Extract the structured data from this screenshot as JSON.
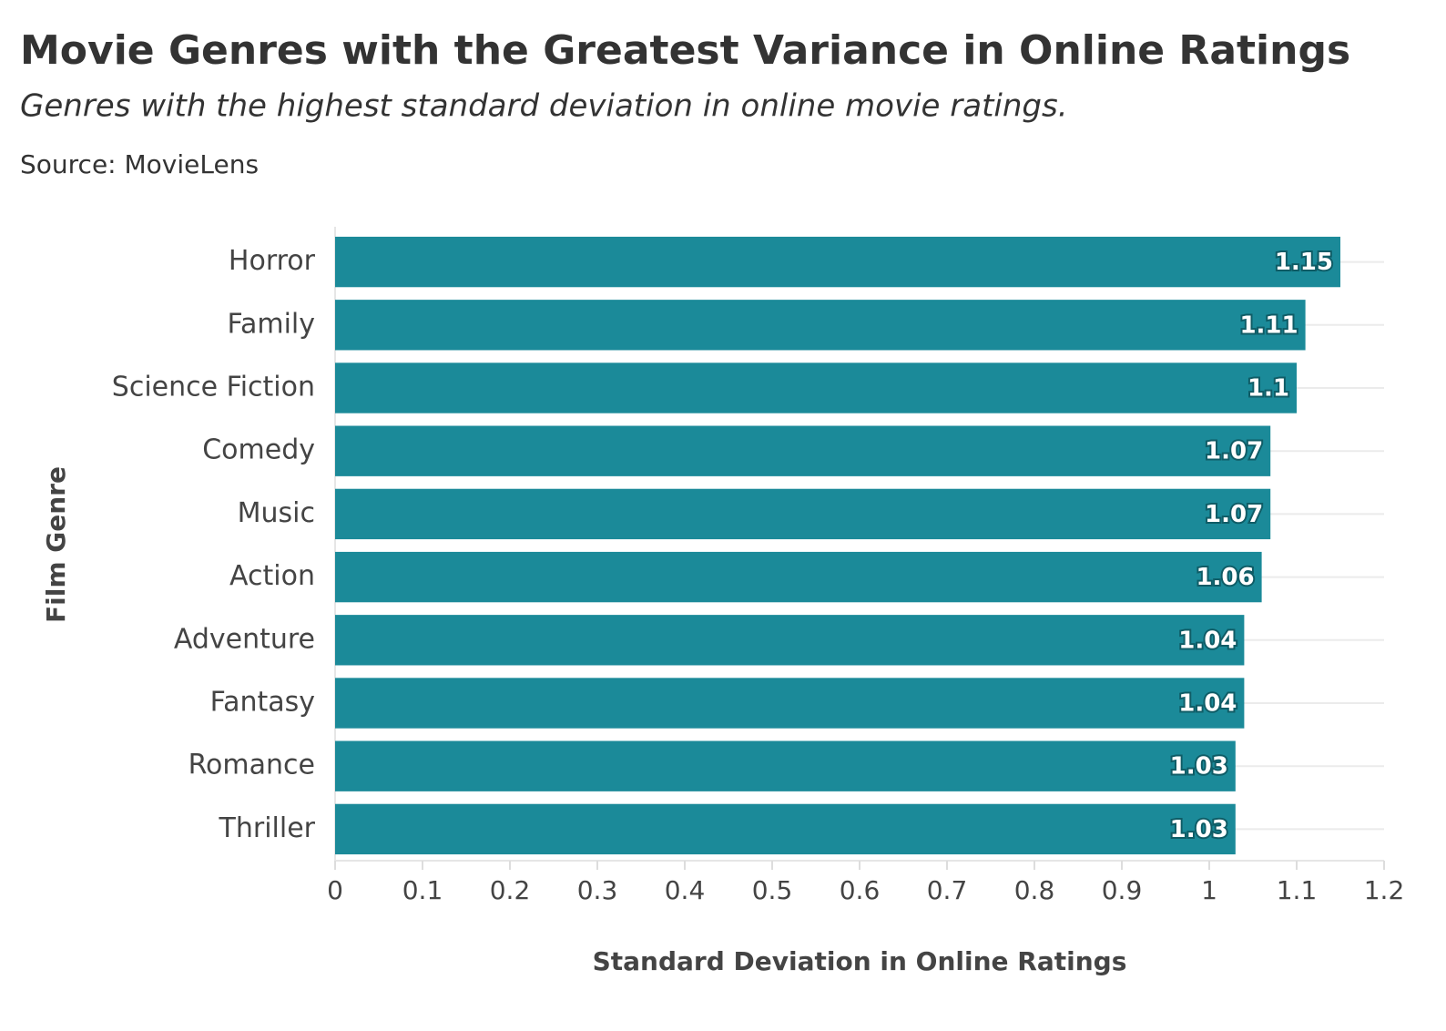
{
  "chart_data": {
    "type": "bar",
    "orientation": "horizontal",
    "title": "Movie Genres with the Greatest Variance in Online Ratings",
    "subtitle": "Genres with the highest standard deviation in online movie ratings.",
    "source": "Source: MovieLens",
    "x_label": "Standard Deviation in Online Ratings",
    "y_label": "Film Genre",
    "categories": [
      "Horror",
      "Family",
      "Science Fiction",
      "Comedy",
      "Music",
      "Action",
      "Adventure",
      "Fantasy",
      "Romance",
      "Thriller"
    ],
    "values": [
      1.15,
      1.11,
      1.1,
      1.07,
      1.07,
      1.06,
      1.04,
      1.04,
      1.03,
      1.03
    ],
    "color": "#1b8a99",
    "xlim": [
      0,
      1.2
    ],
    "xticks": [
      0,
      0.1,
      0.2,
      0.3,
      0.4,
      0.5,
      0.6,
      0.7,
      0.8,
      0.9,
      1,
      1.1,
      1.2
    ],
    "grid": true
  }
}
